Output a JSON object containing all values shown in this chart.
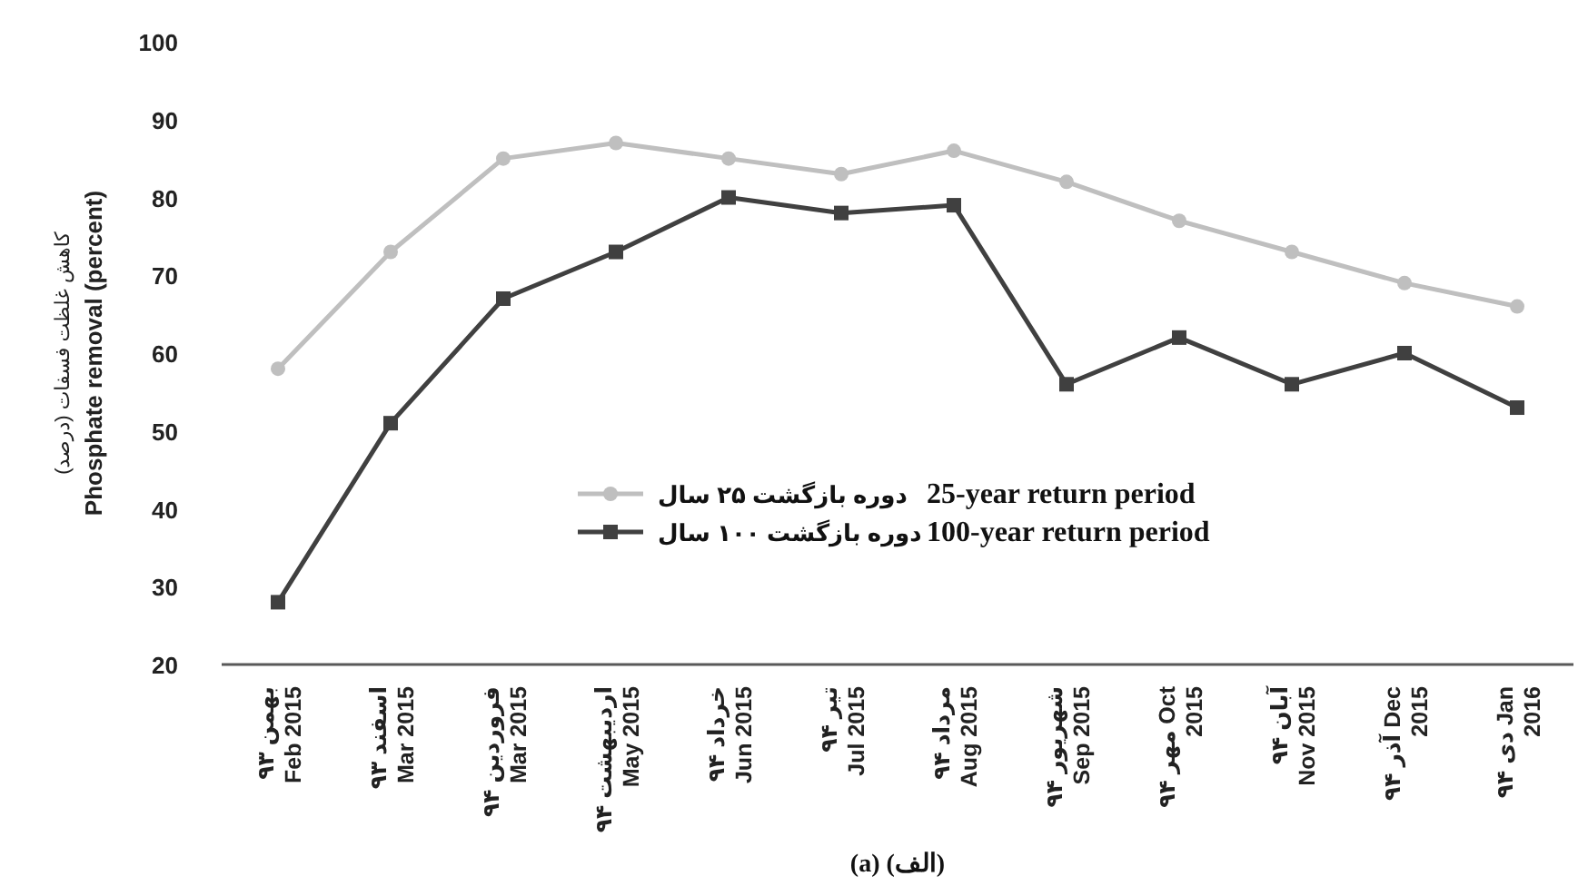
{
  "chart_data": {
    "type": "line",
    "ylabel": "کاهش غلظت فسفات (درصد)\nPhosphate removal (percent)",
    "categories": [
      "بهمن ۹۳\nFeb 2015",
      "اسفند ۹۳\nMar 2015",
      "فروردین ۹۴\nMar 2015",
      "اردیبهشت ۹۴\nMay 2015",
      "خرداد ۹۴\nJun 2015",
      "تیر ۹۴\nJul 2015",
      "مرداد ۹۴\nAug 2015",
      "شهریور ۹۴\nSep 2015",
      "مهر ۹۴ Oct\n2015",
      "آبان ۹۴\nNov 2015",
      "آذر ۹۴ Dec\n2015",
      "دی ۹۴ Jan\n2016"
    ],
    "series": [
      {
        "name": "دوره بازگشت ۲۵ سال\n25-year return period",
        "color": "#bfbfbf",
        "marker": "circle",
        "values": [
          58,
          73,
          85,
          87,
          85,
          83,
          86,
          82,
          77,
          73,
          69,
          66
        ]
      },
      {
        "name": "دوره بازگشت ۱۰۰ سال\n100-year return period",
        "color": "#404040",
        "marker": "square",
        "values": [
          28,
          51,
          67,
          73,
          80,
          78,
          79,
          56,
          62,
          56,
          60,
          53
        ]
      }
    ],
    "ylim": [
      20,
      100
    ],
    "yticks": [
      20,
      30,
      40,
      50,
      60,
      70,
      80,
      90,
      100
    ],
    "grid": false,
    "legend": "bottom",
    "line_style": "solid",
    "annotations": [
      "(a) (الف)"
    ]
  }
}
